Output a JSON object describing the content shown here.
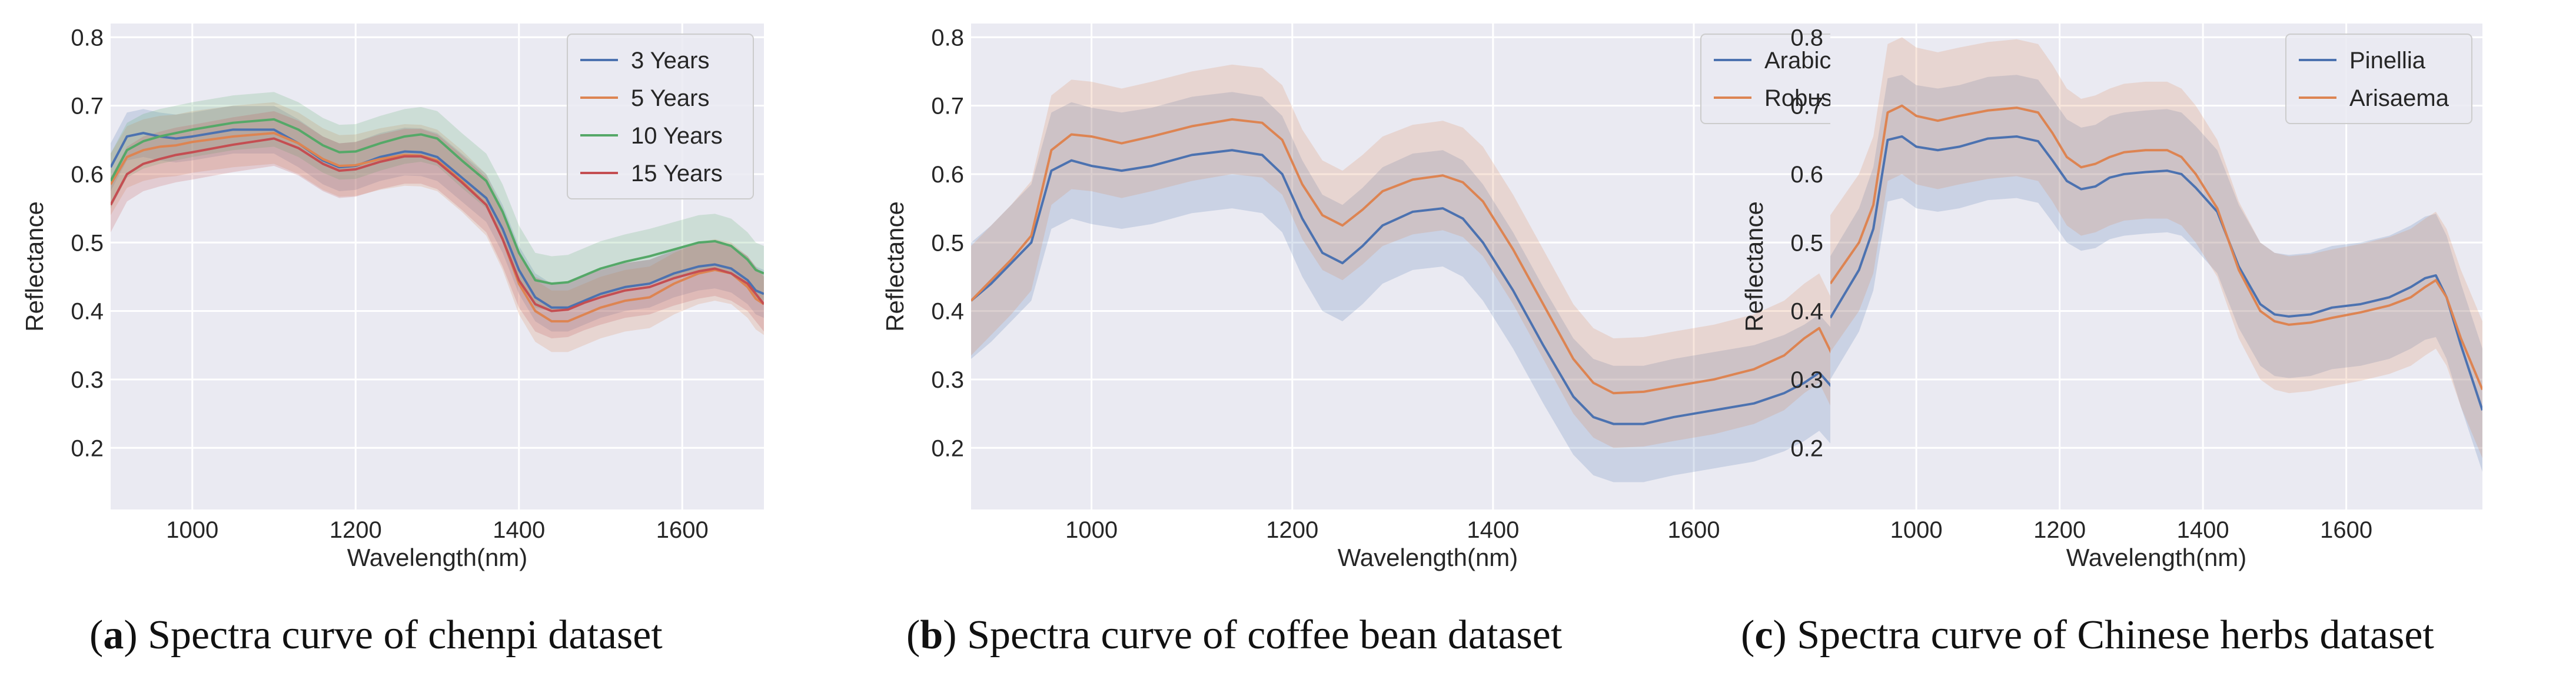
{
  "palette": {
    "blue": "#4c72b0",
    "orange": "#dd8452",
    "green": "#55a868",
    "red": "#c44e52",
    "plot_bg": "#eaeaf2",
    "grid": "#ffffff"
  },
  "chart_data": [
    {
      "type": "line",
      "caption_letter": "a",
      "caption_text": " Spectra curve of chenpi dataset",
      "xlabel": "Wavelength(nm)",
      "ylabel": "Reflectance",
      "xlim": [
        900,
        1700
      ],
      "ylim": [
        0.11,
        0.82
      ],
      "xticks": [
        1000,
        1200,
        1400,
        1600
      ],
      "yticks": [
        0.2,
        0.3,
        0.4,
        0.5,
        0.6,
        0.7,
        0.8
      ],
      "legend_position": "top-right",
      "x": [
        900,
        920,
        940,
        960,
        980,
        1000,
        1050,
        1100,
        1130,
        1160,
        1180,
        1200,
        1230,
        1260,
        1280,
        1300,
        1330,
        1360,
        1380,
        1400,
        1420,
        1440,
        1460,
        1480,
        1500,
        1530,
        1560,
        1590,
        1620,
        1640,
        1660,
        1680,
        1690,
        1700
      ],
      "series": [
        {
          "name": "3 Years",
          "color_key": "blue",
          "band": 0.035,
          "values": [
            0.61,
            0.655,
            0.66,
            0.655,
            0.652,
            0.655,
            0.665,
            0.665,
            0.645,
            0.62,
            0.61,
            0.612,
            0.625,
            0.633,
            0.632,
            0.625,
            0.595,
            0.565,
            0.52,
            0.46,
            0.42,
            0.405,
            0.405,
            0.415,
            0.425,
            0.435,
            0.44,
            0.455,
            0.465,
            0.468,
            0.462,
            0.445,
            0.43,
            0.425
          ]
        },
        {
          "name": "5 Years",
          "color_key": "orange",
          "band": 0.045,
          "values": [
            0.585,
            0.625,
            0.635,
            0.64,
            0.642,
            0.647,
            0.655,
            0.66,
            0.645,
            0.622,
            0.612,
            0.613,
            0.622,
            0.628,
            0.627,
            0.62,
            0.59,
            0.555,
            0.505,
            0.44,
            0.4,
            0.385,
            0.385,
            0.395,
            0.405,
            0.415,
            0.42,
            0.44,
            0.455,
            0.46,
            0.455,
            0.435,
            0.418,
            0.41
          ]
        },
        {
          "name": "10 Years",
          "color_key": "green",
          "band": 0.04,
          "values": [
            0.59,
            0.635,
            0.648,
            0.655,
            0.66,
            0.665,
            0.675,
            0.68,
            0.665,
            0.642,
            0.632,
            0.633,
            0.645,
            0.655,
            0.658,
            0.652,
            0.62,
            0.59,
            0.545,
            0.485,
            0.445,
            0.44,
            0.442,
            0.452,
            0.462,
            0.472,
            0.48,
            0.49,
            0.5,
            0.502,
            0.495,
            0.475,
            0.46,
            0.455
          ]
        },
        {
          "name": "15 Years",
          "color_key": "red",
          "band": 0.04,
          "values": [
            0.555,
            0.6,
            0.615,
            0.622,
            0.628,
            0.632,
            0.643,
            0.652,
            0.638,
            0.615,
            0.605,
            0.607,
            0.618,
            0.626,
            0.626,
            0.618,
            0.588,
            0.555,
            0.505,
            0.445,
            0.41,
            0.4,
            0.402,
            0.412,
            0.42,
            0.43,
            0.435,
            0.448,
            0.458,
            0.462,
            0.455,
            0.44,
            0.425,
            0.41
          ]
        }
      ]
    },
    {
      "type": "line",
      "caption_letter": "b",
      "caption_text": " Spectra curve of coffee bean dataset",
      "xlabel": "Wavelength(nm)",
      "ylabel": "Reflectance",
      "xlim": [
        880,
        1790
      ],
      "ylim": [
        0.11,
        0.82
      ],
      "xticks": [
        1000,
        1200,
        1400,
        1600
      ],
      "yticks": [
        0.2,
        0.3,
        0.4,
        0.5,
        0.6,
        0.7,
        0.8
      ],
      "legend_position": "top-right",
      "x": [
        880,
        900,
        920,
        940,
        960,
        980,
        1000,
        1030,
        1060,
        1100,
        1140,
        1170,
        1190,
        1210,
        1230,
        1250,
        1270,
        1290,
        1320,
        1350,
        1370,
        1390,
        1420,
        1450,
        1480,
        1500,
        1520,
        1550,
        1580,
        1620,
        1660,
        1690,
        1710,
        1725,
        1740,
        1760,
        1790
      ],
      "series": [
        {
          "name": "Arabica",
          "color_key": "blue",
          "band": 0.085,
          "values": [
            0.415,
            0.44,
            0.47,
            0.5,
            0.605,
            0.62,
            0.612,
            0.605,
            0.612,
            0.628,
            0.635,
            0.628,
            0.6,
            0.535,
            0.485,
            0.47,
            0.495,
            0.525,
            0.545,
            0.55,
            0.535,
            0.5,
            0.43,
            0.35,
            0.275,
            0.245,
            0.235,
            0.235,
            0.245,
            0.255,
            0.265,
            0.28,
            0.295,
            0.31,
            0.285,
            0.255,
            0.24
          ]
        },
        {
          "name": "Robusta",
          "color_key": "orange",
          "band": 0.08,
          "values": [
            0.415,
            0.445,
            0.475,
            0.51,
            0.635,
            0.658,
            0.655,
            0.645,
            0.655,
            0.67,
            0.68,
            0.675,
            0.65,
            0.585,
            0.54,
            0.525,
            0.548,
            0.575,
            0.592,
            0.598,
            0.588,
            0.56,
            0.49,
            0.41,
            0.33,
            0.295,
            0.28,
            0.282,
            0.29,
            0.3,
            0.315,
            0.335,
            0.36,
            0.375,
            0.33,
            0.27,
            0.23
          ]
        }
      ]
    },
    {
      "type": "line",
      "caption_letter": "c",
      "caption_text": " Spectra curve of Chinese herbs dataset",
      "xlabel": "Wavelength(nm)",
      "ylabel": "Reflectance",
      "xlim": [
        880,
        1790
      ],
      "ylim": [
        0.11,
        0.82
      ],
      "xticks": [
        1000,
        1200,
        1400,
        1600
      ],
      "yticks": [
        0.2,
        0.3,
        0.4,
        0.5,
        0.6,
        0.7,
        0.8
      ],
      "legend_position": "top-right",
      "x": [
        880,
        900,
        920,
        940,
        960,
        980,
        1000,
        1030,
        1060,
        1100,
        1140,
        1170,
        1190,
        1210,
        1230,
        1250,
        1270,
        1290,
        1320,
        1350,
        1370,
        1390,
        1420,
        1450,
        1480,
        1500,
        1520,
        1550,
        1580,
        1620,
        1660,
        1690,
        1710,
        1725,
        1740,
        1760,
        1790
      ],
      "series": [
        {
          "name": "Pinellia",
          "color_key": "blue",
          "band": 0.09,
          "values": [
            0.39,
            0.425,
            0.46,
            0.52,
            0.65,
            0.655,
            0.64,
            0.635,
            0.64,
            0.652,
            0.655,
            0.648,
            0.62,
            0.59,
            0.578,
            0.582,
            0.595,
            0.6,
            0.603,
            0.605,
            0.6,
            0.58,
            0.545,
            0.465,
            0.41,
            0.395,
            0.392,
            0.395,
            0.405,
            0.41,
            0.42,
            0.435,
            0.448,
            0.452,
            0.42,
            0.35,
            0.255
          ]
        },
        {
          "name": "Arisaema",
          "color_key": "orange",
          "band": 0.1,
          "values": [
            0.44,
            0.47,
            0.5,
            0.555,
            0.69,
            0.7,
            0.685,
            0.678,
            0.685,
            0.693,
            0.697,
            0.69,
            0.66,
            0.625,
            0.61,
            0.615,
            0.625,
            0.632,
            0.635,
            0.635,
            0.625,
            0.6,
            0.55,
            0.46,
            0.4,
            0.385,
            0.38,
            0.383,
            0.39,
            0.398,
            0.408,
            0.42,
            0.435,
            0.445,
            0.42,
            0.36,
            0.285
          ]
        }
      ]
    }
  ]
}
